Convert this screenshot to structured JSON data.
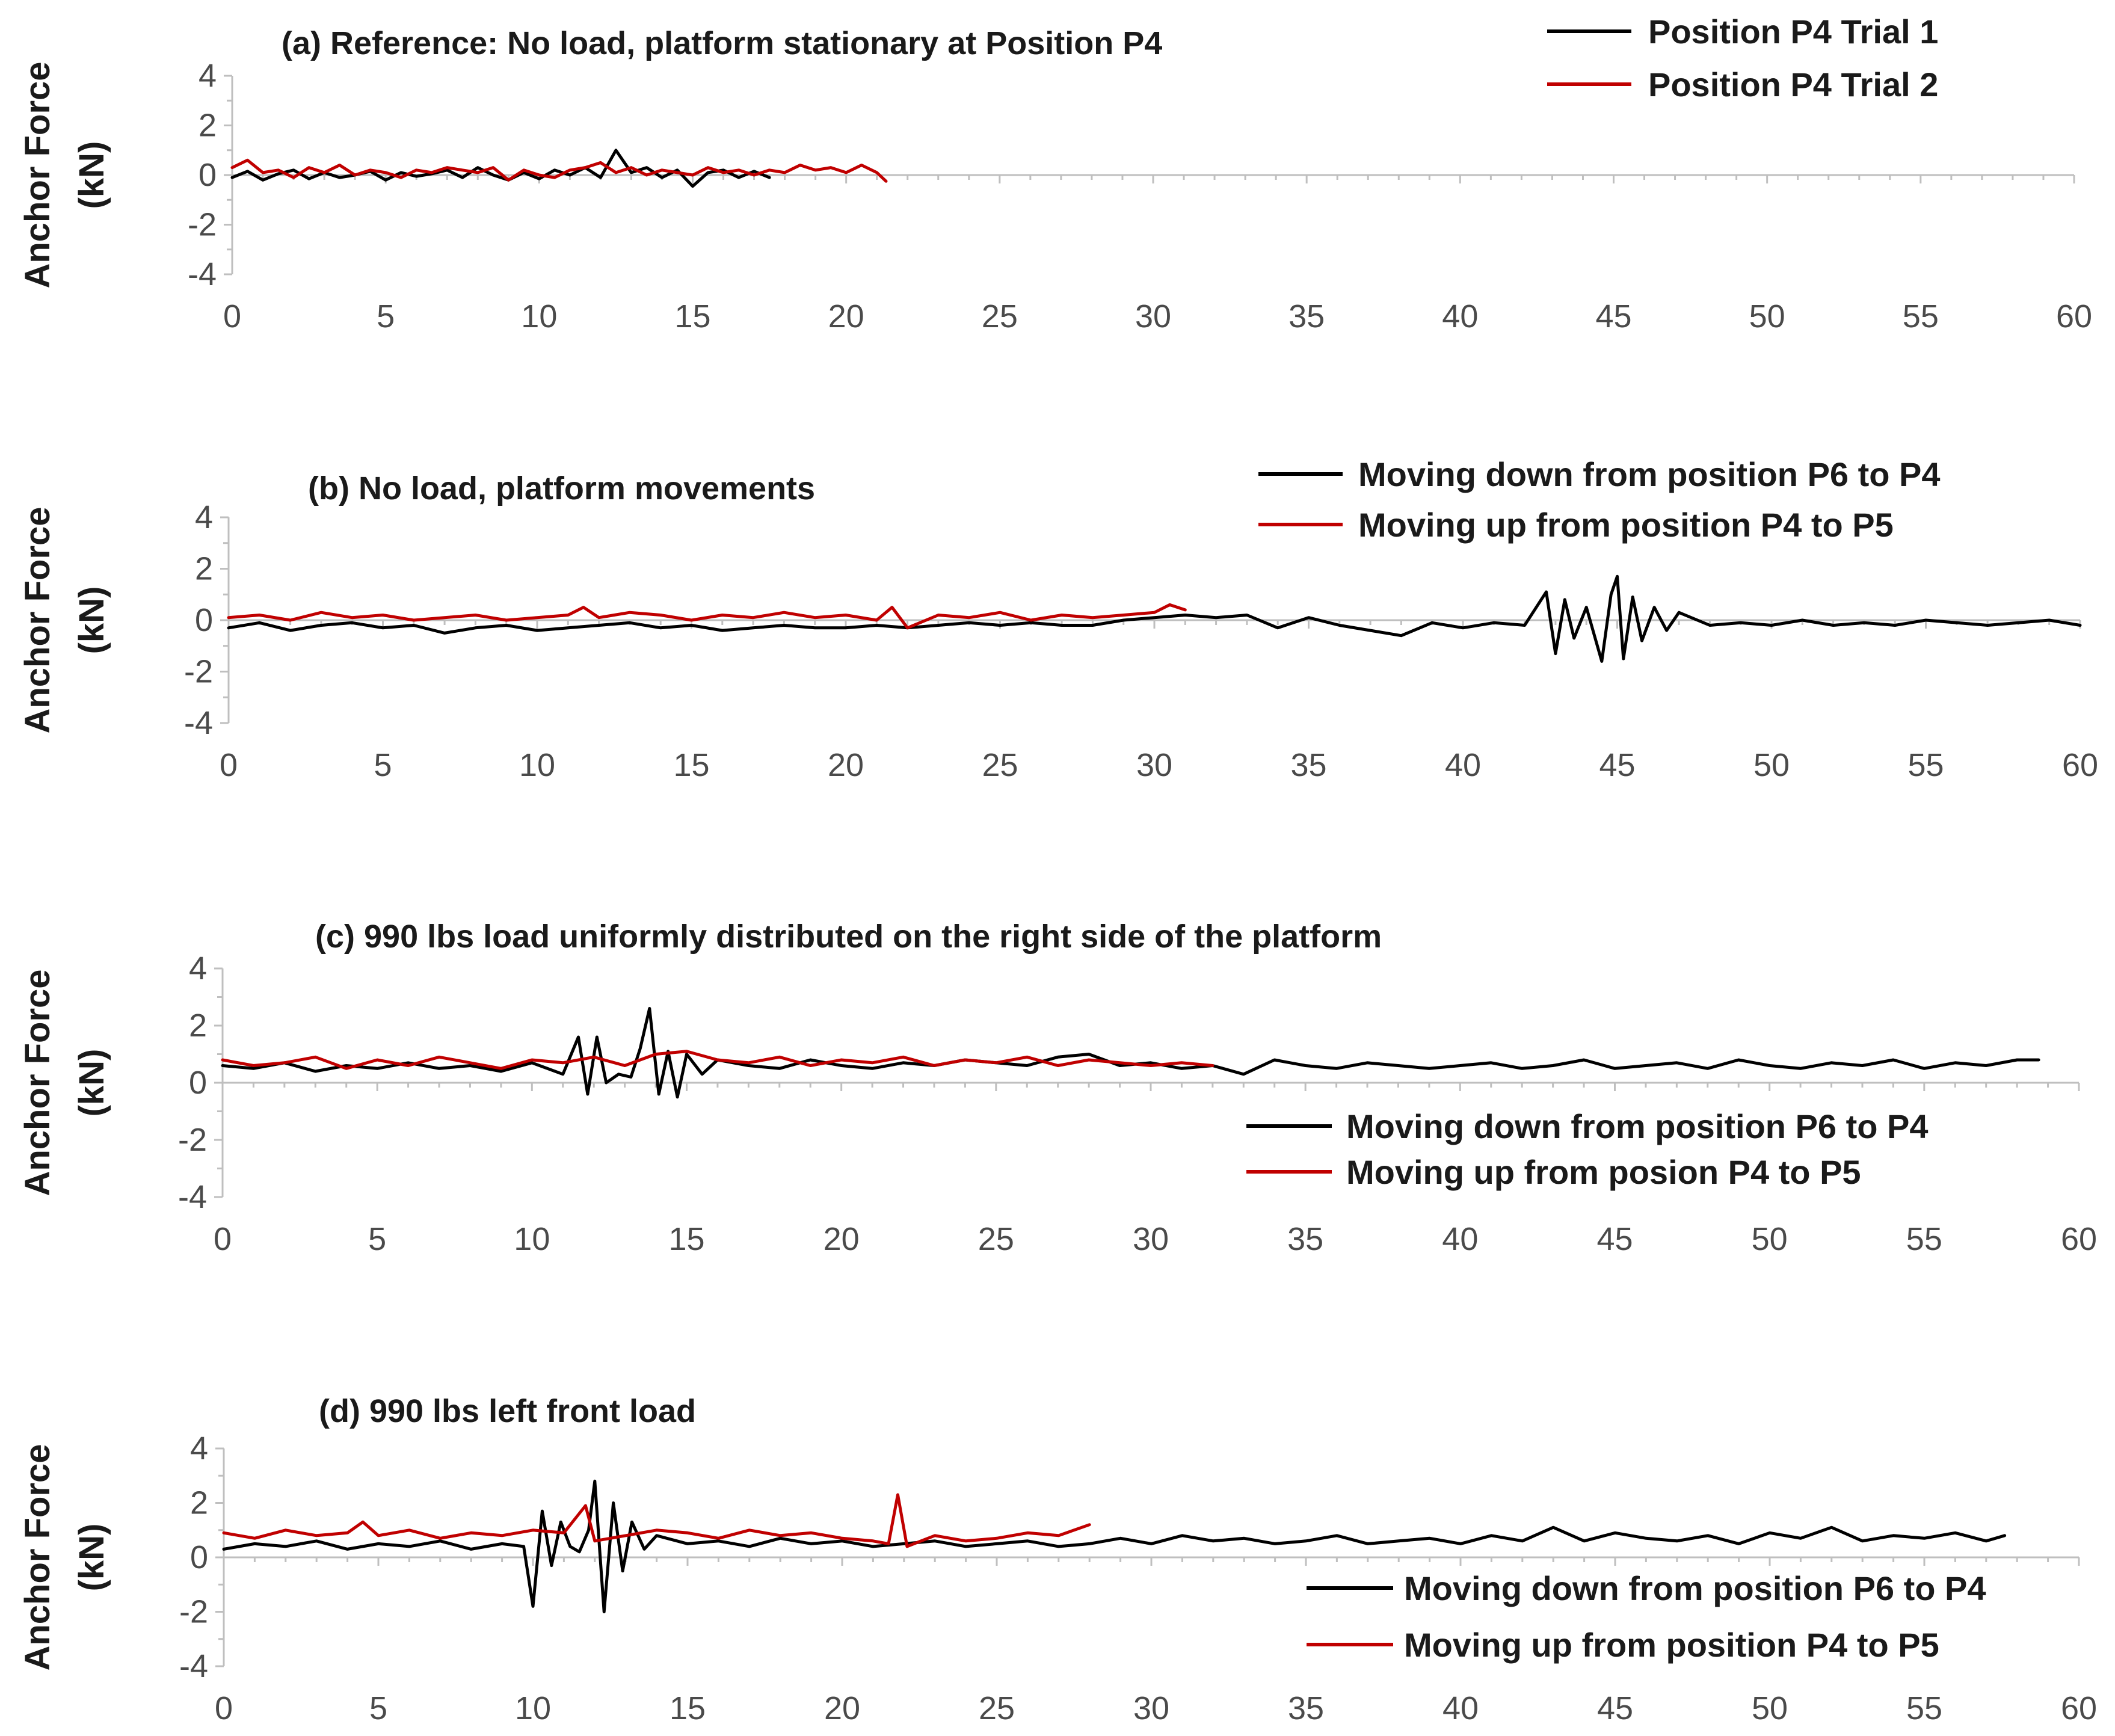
{
  "chart_data": [
    {
      "type": "line",
      "title": "(a) Reference: No load, platform stationary at Position P4",
      "ylabel_line1": "Anchor Force",
      "ylabel_line2": "(kN)",
      "xlim": [
        0,
        60
      ],
      "ylim": [
        -4,
        4
      ],
      "xticks": [
        0,
        5,
        10,
        15,
        20,
        25,
        30,
        35,
        40,
        45,
        50,
        55,
        60
      ],
      "yticks": [
        4,
        2,
        0,
        -2,
        -4
      ],
      "grid": false,
      "legend_position": "top-right",
      "series": [
        {
          "name": "Position P4 Trial 1",
          "color": "#000000",
          "x": [
            0,
            0.5,
            1,
            1.5,
            2,
            2.5,
            3,
            3.5,
            4,
            4.5,
            5,
            5.5,
            6,
            6.5,
            7,
            7.5,
            8,
            8.5,
            9,
            9.5,
            10,
            10.5,
            11,
            11.5,
            12,
            12.5,
            13,
            13.5,
            14,
            14.5,
            15,
            15.5,
            16,
            16.5,
            17,
            17.5
          ],
          "y": [
            -0.1,
            0.15,
            -0.2,
            0.05,
            0.2,
            -0.15,
            0.1,
            -0.1,
            0.0,
            0.15,
            -0.2,
            0.1,
            -0.05,
            0.05,
            0.2,
            -0.1,
            0.3,
            0.0,
            -0.2,
            0.1,
            -0.15,
            0.2,
            0.0,
            0.3,
            -0.1,
            1.0,
            0.1,
            0.3,
            -0.1,
            0.2,
            -0.45,
            0.1,
            0.2,
            -0.1,
            0.15,
            -0.1
          ]
        },
        {
          "name": "Position P4 Trial 2",
          "color": "#c00000",
          "x": [
            0,
            0.5,
            1,
            1.5,
            2,
            2.5,
            3,
            3.5,
            4,
            4.5,
            5,
            5.5,
            6,
            6.5,
            7,
            7.5,
            8,
            8.5,
            9,
            9.5,
            10,
            10.5,
            11,
            11.5,
            12,
            12.5,
            13,
            13.5,
            14,
            14.5,
            15,
            15.5,
            16,
            16.5,
            17,
            17.5,
            18,
            18.5,
            19,
            19.5,
            20,
            20.5,
            21,
            21.3
          ],
          "y": [
            0.3,
            0.6,
            0.1,
            0.2,
            -0.1,
            0.3,
            0.1,
            0.4,
            0.0,
            0.2,
            0.1,
            -0.1,
            0.2,
            0.1,
            0.3,
            0.2,
            0.1,
            0.3,
            -0.2,
            0.2,
            0.0,
            -0.1,
            0.2,
            0.3,
            0.5,
            0.1,
            0.3,
            0.0,
            0.2,
            0.1,
            0.0,
            0.3,
            0.1,
            0.2,
            0.0,
            0.2,
            0.1,
            0.4,
            0.2,
            0.3,
            0.1,
            0.4,
            0.1,
            -0.25
          ]
        }
      ]
    },
    {
      "type": "line",
      "title": "(b) No load, platform movements",
      "ylabel_line1": "Anchor Force",
      "ylabel_line2": "(kN)",
      "xlim": [
        0,
        60
      ],
      "ylim": [
        -4,
        4
      ],
      "xticks": [
        0,
        5,
        10,
        15,
        20,
        25,
        30,
        35,
        40,
        45,
        50,
        55,
        60
      ],
      "yticks": [
        4,
        2,
        0,
        -2,
        -4
      ],
      "grid": false,
      "legend_position": "top-right",
      "series": [
        {
          "name": "Moving down from position P6 to P4",
          "color": "#000000",
          "x": [
            0,
            1,
            2,
            3,
            4,
            5,
            6,
            7,
            8,
            9,
            10,
            11,
            12,
            13,
            14,
            15,
            16,
            17,
            18,
            19,
            20,
            21,
            22,
            23,
            24,
            25,
            26,
            27,
            28,
            29,
            30,
            31,
            32,
            33,
            34,
            35,
            36,
            37,
            38,
            39,
            40,
            41,
            42,
            42.7,
            43,
            43.3,
            43.6,
            44,
            44.5,
            44.8,
            45,
            45.2,
            45.5,
            45.8,
            46.2,
            46.6,
            47,
            48,
            49,
            50,
            51,
            52,
            53,
            54,
            55,
            56,
            57,
            58,
            59,
            60
          ],
          "y": [
            -0.3,
            -0.1,
            -0.4,
            -0.2,
            -0.1,
            -0.3,
            -0.2,
            -0.5,
            -0.3,
            -0.2,
            -0.4,
            -0.3,
            -0.2,
            -0.1,
            -0.3,
            -0.2,
            -0.4,
            -0.3,
            -0.2,
            -0.3,
            -0.3,
            -0.2,
            -0.3,
            -0.2,
            -0.1,
            -0.2,
            -0.1,
            -0.2,
            -0.2,
            0.0,
            0.1,
            0.2,
            0.1,
            0.2,
            -0.3,
            0.1,
            -0.2,
            -0.4,
            -0.6,
            -0.1,
            -0.3,
            -0.1,
            -0.2,
            1.1,
            -1.3,
            0.8,
            -0.7,
            0.5,
            -1.6,
            1.0,
            1.7,
            -1.5,
            0.9,
            -0.8,
            0.5,
            -0.4,
            0.3,
            -0.2,
            -0.1,
            -0.2,
            0.0,
            -0.2,
            -0.1,
            -0.2,
            0.0,
            -0.1,
            -0.2,
            -0.1,
            0.0,
            -0.2
          ]
        },
        {
          "name": "Moving up from position P4 to P5",
          "color": "#c00000",
          "x": [
            0,
            1,
            2,
            3,
            4,
            5,
            6,
            7,
            8,
            9,
            10,
            11,
            11.5,
            12,
            13,
            14,
            15,
            16,
            17,
            18,
            19,
            20,
            21,
            21.5,
            22,
            23,
            24,
            25,
            26,
            27,
            28,
            29,
            30,
            30.5,
            31
          ],
          "y": [
            0.1,
            0.2,
            0.0,
            0.3,
            0.1,
            0.2,
            0.0,
            0.1,
            0.2,
            0.0,
            0.1,
            0.2,
            0.5,
            0.1,
            0.3,
            0.2,
            0.0,
            0.2,
            0.1,
            0.3,
            0.1,
            0.2,
            0.0,
            0.5,
            -0.3,
            0.2,
            0.1,
            0.3,
            0.0,
            0.2,
            0.1,
            0.2,
            0.3,
            0.6,
            0.4
          ]
        }
      ]
    },
    {
      "type": "line",
      "title": "(c) 990 lbs load uniformly distributed on the right side of the platform",
      "ylabel_line1": "Anchor Force",
      "ylabel_line2": "(kN)",
      "xlim": [
        0,
        60
      ],
      "ylim": [
        -4,
        4
      ],
      "xticks": [
        0,
        5,
        10,
        15,
        20,
        25,
        30,
        35,
        40,
        45,
        50,
        55,
        60
      ],
      "yticks": [
        4,
        2,
        0,
        -2,
        -4
      ],
      "grid": false,
      "legend_position": "bottom-right",
      "series": [
        {
          "name": "Moving down from position P6 to P4",
          "color": "#000000",
          "x": [
            0,
            1,
            2,
            3,
            4,
            5,
            6,
            7,
            8,
            9,
            10,
            11,
            11.5,
            11.8,
            12.1,
            12.4,
            12.8,
            13.2,
            13.5,
            13.8,
            14.1,
            14.4,
            14.7,
            15,
            15.5,
            16,
            17,
            18,
            19,
            20,
            21,
            22,
            23,
            24,
            25,
            26,
            27,
            28,
            29,
            30,
            31,
            32,
            33,
            34,
            35,
            36,
            37,
            38,
            39,
            40,
            41,
            42,
            43,
            44,
            45,
            46,
            47,
            48,
            49,
            50,
            51,
            52,
            53,
            54,
            55,
            56,
            57,
            58,
            58.7
          ],
          "y": [
            0.6,
            0.5,
            0.7,
            0.4,
            0.6,
            0.5,
            0.7,
            0.5,
            0.6,
            0.4,
            0.7,
            0.3,
            1.6,
            -0.4,
            1.6,
            0.0,
            0.3,
            0.2,
            1.2,
            2.6,
            -0.4,
            1.1,
            -0.5,
            1.0,
            0.3,
            0.8,
            0.6,
            0.5,
            0.8,
            0.6,
            0.5,
            0.7,
            0.6,
            0.8,
            0.7,
            0.6,
            0.9,
            1.0,
            0.6,
            0.7,
            0.5,
            0.6,
            0.3,
            0.8,
            0.6,
            0.5,
            0.7,
            0.6,
            0.5,
            0.6,
            0.7,
            0.5,
            0.6,
            0.8,
            0.5,
            0.6,
            0.7,
            0.5,
            0.8,
            0.6,
            0.5,
            0.7,
            0.6,
            0.8,
            0.5,
            0.7,
            0.6,
            0.8,
            0.8
          ]
        },
        {
          "name": "Moving up from posion P4 to P5",
          "color": "#c00000",
          "x": [
            0,
            1,
            2,
            3,
            4,
            5,
            6,
            7,
            8,
            9,
            10,
            11,
            12,
            13,
            14,
            15,
            16,
            17,
            18,
            19,
            20,
            21,
            22,
            23,
            24,
            25,
            26,
            27,
            28,
            29,
            30,
            31,
            32
          ],
          "y": [
            0.8,
            0.6,
            0.7,
            0.9,
            0.5,
            0.8,
            0.6,
            0.9,
            0.7,
            0.5,
            0.8,
            0.7,
            0.9,
            0.6,
            1.0,
            1.1,
            0.8,
            0.7,
            0.9,
            0.6,
            0.8,
            0.7,
            0.9,
            0.6,
            0.8,
            0.7,
            0.9,
            0.6,
            0.8,
            0.7,
            0.6,
            0.7,
            0.6
          ]
        }
      ]
    },
    {
      "type": "line",
      "title": "(d) 990 lbs left front load",
      "ylabel_line1": "Anchor Force",
      "ylabel_line2": "(kN)",
      "xlim": [
        0,
        60
      ],
      "ylim": [
        -4,
        4
      ],
      "xticks": [
        0,
        5,
        10,
        15,
        20,
        25,
        30,
        35,
        40,
        45,
        50,
        55,
        60
      ],
      "yticks": [
        4,
        2,
        0,
        -2,
        -4
      ],
      "grid": false,
      "legend_position": "bottom-right",
      "series": [
        {
          "name": "Moving down from position P6 to P4",
          "color": "#000000",
          "x": [
            0,
            1,
            2,
            3,
            4,
            5,
            6,
            7,
            8,
            9,
            9.7,
            10.0,
            10.3,
            10.6,
            10.9,
            11.2,
            11.5,
            11.8,
            12.0,
            12.3,
            12.6,
            12.9,
            13.2,
            13.6,
            14,
            15,
            16,
            17,
            18,
            19,
            20,
            21,
            22,
            23,
            24,
            25,
            26,
            27,
            28,
            29,
            30,
            31,
            32,
            33,
            34,
            35,
            36,
            37,
            38,
            39,
            40,
            41,
            42,
            43,
            44,
            45,
            46,
            47,
            48,
            49,
            50,
            51,
            52,
            53,
            54,
            55,
            56,
            57,
            57.6
          ],
          "y": [
            0.3,
            0.5,
            0.4,
            0.6,
            0.3,
            0.5,
            0.4,
            0.6,
            0.3,
            0.5,
            0.4,
            -1.8,
            1.7,
            -0.3,
            1.3,
            0.4,
            0.2,
            1.0,
            2.8,
            -2.0,
            2.0,
            -0.5,
            1.3,
            0.3,
            0.8,
            0.5,
            0.6,
            0.4,
            0.7,
            0.5,
            0.6,
            0.4,
            0.5,
            0.6,
            0.4,
            0.5,
            0.6,
            0.4,
            0.5,
            0.7,
            0.5,
            0.8,
            0.6,
            0.7,
            0.5,
            0.6,
            0.8,
            0.5,
            0.6,
            0.7,
            0.5,
            0.8,
            0.6,
            1.1,
            0.6,
            0.9,
            0.7,
            0.6,
            0.8,
            0.5,
            0.9,
            0.7,
            1.1,
            0.6,
            0.8,
            0.7,
            0.9,
            0.6,
            0.8
          ]
        },
        {
          "name": "Moving up from position P4 to P5",
          "color": "#c00000",
          "x": [
            0,
            1,
            2,
            3,
            4,
            4.5,
            5,
            6,
            7,
            8,
            9,
            10,
            11,
            11.7,
            12,
            13,
            14,
            15,
            16,
            17,
            18,
            19,
            20,
            21,
            21.5,
            21.8,
            22.1,
            23,
            24,
            25,
            26,
            27,
            28
          ],
          "y": [
            0.9,
            0.7,
            1.0,
            0.8,
            0.9,
            1.3,
            0.8,
            1.0,
            0.7,
            0.9,
            0.8,
            1.0,
            0.9,
            1.9,
            0.6,
            0.8,
            1.0,
            0.9,
            0.7,
            1.0,
            0.8,
            0.9,
            0.7,
            0.6,
            0.5,
            2.3,
            0.4,
            0.8,
            0.6,
            0.7,
            0.9,
            0.8,
            1.2
          ]
        }
      ]
    }
  ]
}
